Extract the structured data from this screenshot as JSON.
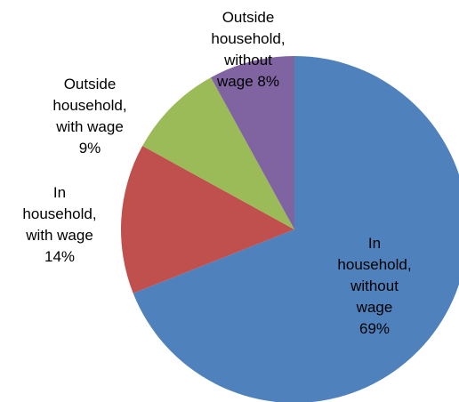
{
  "chart_data": {
    "type": "pie",
    "title": "",
    "slices": [
      {
        "label_lines": [
          "In",
          "household,",
          "without",
          "wage",
          "69%"
        ],
        "value": 69,
        "color": "#4F81BD"
      },
      {
        "label_lines": [
          "In",
          "household,",
          "with wage",
          "14%"
        ],
        "value": 14,
        "color": "#C0504D"
      },
      {
        "label_lines": [
          "Outside",
          "household,",
          "with wage",
          "9%"
        ],
        "value": 9,
        "color": "#9BBB59"
      },
      {
        "label_lines": [
          "Outside",
          "household,",
          "without",
          "wage 8%"
        ],
        "value": 8,
        "color": "#8064A2"
      }
    ],
    "start": "12 o'clock",
    "direction": "clockwise",
    "legend": "none"
  }
}
